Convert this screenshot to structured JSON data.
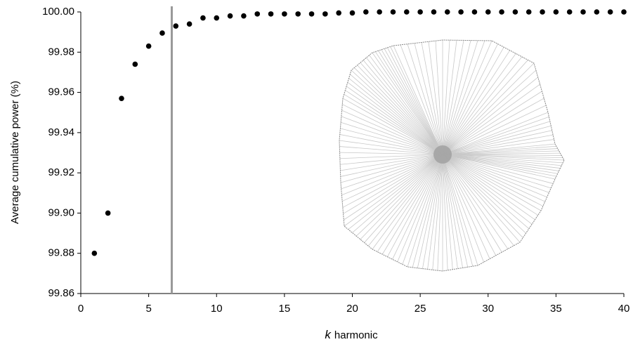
{
  "chart_data": {
    "type": "scatter",
    "y_label": "Average cumulative power (%)",
    "x_label_var": "k",
    "x_label": "harmonic",
    "x": [
      1,
      2,
      3,
      4,
      5,
      6,
      7,
      8,
      9,
      10,
      11,
      12,
      13,
      14,
      15,
      16,
      17,
      18,
      19,
      20,
      21,
      22,
      23,
      24,
      25,
      26,
      27,
      28,
      29,
      30,
      31,
      32,
      33,
      34,
      35,
      36,
      37,
      38,
      39,
      40
    ],
    "values": [
      99.88,
      99.9,
      99.957,
      99.974,
      99.983,
      99.9895,
      99.993,
      99.994,
      99.997,
      99.997,
      99.998,
      99.998,
      99.999,
      99.999,
      99.999,
      99.999,
      99.999,
      99.999,
      99.9995,
      99.9995,
      100,
      100,
      100,
      100,
      100,
      100,
      100,
      100,
      100,
      100,
      100,
      100,
      100,
      100,
      100,
      100,
      100,
      100,
      100,
      100
    ],
    "color": "#000000",
    "vline": 6.7,
    "vline_color": "#999999",
    "xlim": [
      0,
      40
    ],
    "xticks": [
      0,
      5,
      10,
      15,
      20,
      25,
      30,
      35,
      40
    ],
    "ylim": [
      99.86,
      100
    ],
    "yticks": [
      {
        "value": 99.86,
        "label": "99.86"
      },
      {
        "value": 99.88,
        "label": "99.88"
      },
      {
        "value": 99.9,
        "label": "99.90"
      },
      {
        "value": 99.92,
        "label": "99.92"
      },
      {
        "value": 99.94,
        "label": "99.94"
      },
      {
        "value": 99.96,
        "label": "99.96"
      },
      {
        "value": 99.98,
        "label": "99.98"
      },
      {
        "value": 100,
        "label": "100.00"
      }
    ],
    "grid": false
  }
}
